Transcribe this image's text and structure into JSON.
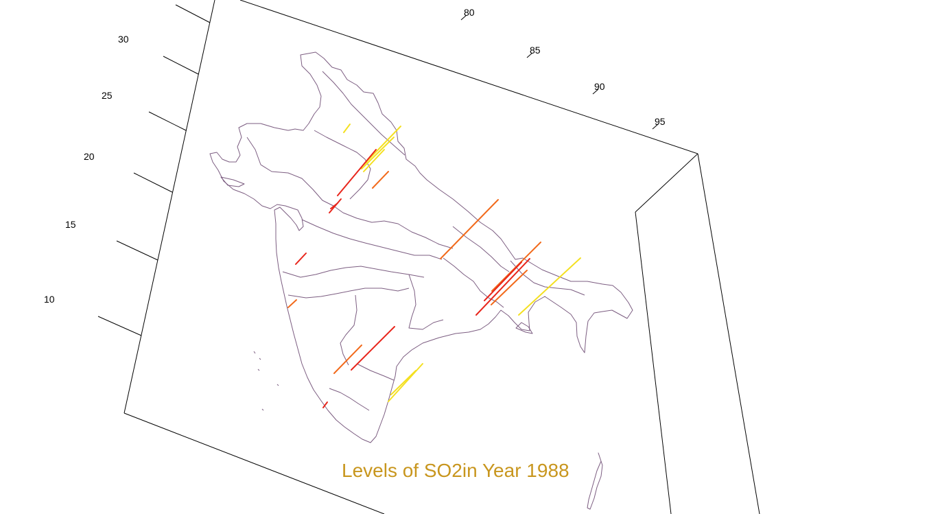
{
  "chart_data": {
    "type": "3d-map-bars",
    "title": "Levels of SO2in Year 1988",
    "title_color": "#c8961e",
    "map_outline_color": "#7b5c80",
    "x_axis": {
      "label": "",
      "ticks": [
        "80",
        "85",
        "90",
        "95"
      ]
    },
    "y_axis": {
      "label": "",
      "ticks": [
        "10",
        "15",
        "20",
        "25",
        "30"
      ]
    },
    "level_colors": {
      "high": "#e8261c",
      "medium": "#f26a1b",
      "low": "#f4e021"
    },
    "stations": [
      {
        "level": "low"
      },
      {
        "level": "low"
      },
      {
        "level": "low"
      },
      {
        "level": "low"
      },
      {
        "level": "high"
      },
      {
        "level": "medium"
      },
      {
        "level": "high"
      },
      {
        "level": "high"
      },
      {
        "level": "medium"
      },
      {
        "level": "high"
      },
      {
        "level": "medium"
      },
      {
        "level": "high"
      },
      {
        "level": "high"
      },
      {
        "level": "medium"
      },
      {
        "level": "low"
      },
      {
        "level": "high"
      },
      {
        "level": "medium"
      },
      {
        "level": "high"
      },
      {
        "level": "medium"
      },
      {
        "level": "low"
      },
      {
        "level": "low"
      }
    ]
  }
}
